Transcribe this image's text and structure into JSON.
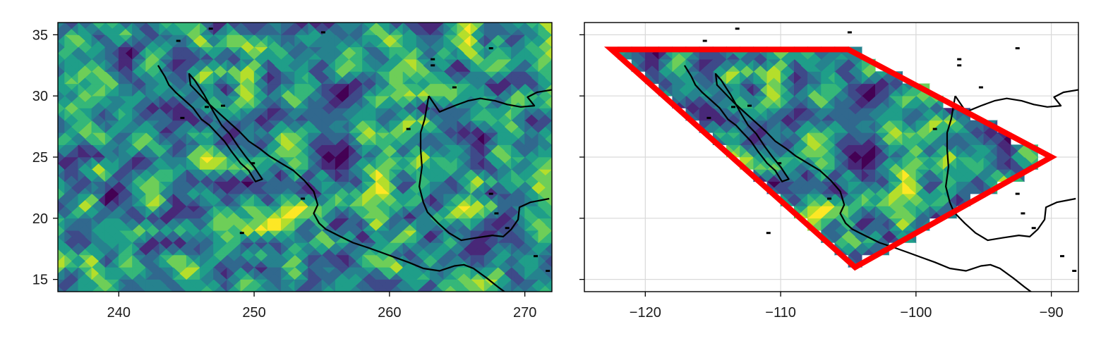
{
  "colors": {
    "viridis": [
      "#440154",
      "#482878",
      "#3e4a89",
      "#31688e",
      "#26828e",
      "#1f9e89",
      "#35b779",
      "#6ece58",
      "#b5de2b",
      "#fde725"
    ],
    "coastline": "#000000",
    "polygon": "#ff0000",
    "grid": "#d9d9d9"
  },
  "chart_data": [
    {
      "type": "heatmap",
      "name": "left-map",
      "title": "",
      "xlabel": "",
      "ylabel": "",
      "xlim": [
        235.5,
        272
      ],
      "ylim": [
        14,
        36
      ],
      "x_ticks": [
        240,
        250,
        260,
        270
      ],
      "x_tick_labels": [
        "240",
        "250",
        "260",
        "270"
      ],
      "y_ticks": [
        15,
        20,
        25,
        30,
        35
      ],
      "y_tick_labels": [
        "15",
        "20",
        "25",
        "30",
        "35"
      ],
      "grid": false,
      "colormap": "viridis",
      "field": {
        "x_start": 235,
        "x_step": 1,
        "nx": 38,
        "y_start": 14,
        "y_step": 1,
        "ny": 23,
        "value_range": [
          0,
          1
        ],
        "description_seed": 7
      },
      "coastline_lon_offset": 360
    },
    {
      "type": "heatmap",
      "name": "right-map",
      "title": "",
      "xlabel": "",
      "ylabel": "",
      "xlim": [
        -124.5,
        -88
      ],
      "ylim": [
        14,
        36
      ],
      "x_ticks": [
        -120,
        -110,
        -100,
        -90
      ],
      "x_tick_labels": [
        "−120",
        "−110",
        "−100",
        "−90"
      ],
      "y_ticks": [
        15,
        20,
        25,
        30,
        35
      ],
      "y_tick_labels": [],
      "grid": true,
      "colormap": "viridis",
      "polygon": [
        [
          -122.5,
          33.8
        ],
        [
          -105,
          33.8
        ],
        [
          -90,
          25
        ],
        [
          -104.5,
          16
        ]
      ],
      "field_masked_to_polygon": true,
      "coastline_lon_offset": 0
    }
  ],
  "coastline": [
    [
      [
        -117.1,
        32.5
      ],
      [
        -116.6,
        31.6
      ],
      [
        -116.3,
        30.9
      ],
      [
        -115.8,
        30.3
      ],
      [
        -115.1,
        29.6
      ],
      [
        -114.5,
        29.0
      ],
      [
        -113.9,
        28.1
      ],
      [
        -113.3,
        27.6
      ],
      [
        -112.8,
        27.0
      ],
      [
        -112.2,
        26.3
      ],
      [
        -111.7,
        25.5
      ],
      [
        -111.0,
        24.5
      ],
      [
        -110.4,
        23.9
      ],
      [
        -109.9,
        23.0
      ],
      [
        -109.4,
        23.2
      ],
      [
        -110.0,
        24.2
      ],
      [
        -110.6,
        25.0
      ],
      [
        -111.2,
        25.9
      ],
      [
        -111.8,
        26.9
      ],
      [
        -112.4,
        27.6
      ],
      [
        -112.9,
        28.5
      ],
      [
        -113.3,
        29.3
      ],
      [
        -113.7,
        30.1
      ],
      [
        -114.4,
        31.3
      ],
      [
        -114.8,
        31.8
      ],
      [
        -114.7,
        30.9
      ],
      [
        -114.1,
        30.2
      ],
      [
        -113.4,
        29.4
      ],
      [
        -112.8,
        28.8
      ],
      [
        -112.0,
        28.0
      ],
      [
        -111.1,
        27.1
      ],
      [
        -110.4,
        26.3
      ],
      [
        -109.6,
        25.7
      ],
      [
        -108.9,
        25.1
      ],
      [
        -108.0,
        24.5
      ],
      [
        -107.1,
        23.9
      ],
      [
        -106.3,
        23.1
      ],
      [
        -105.6,
        22.2
      ],
      [
        -105.3,
        21.1
      ],
      [
        -105.6,
        20.4
      ],
      [
        -105.2,
        19.6
      ],
      [
        -104.7,
        19.1
      ],
      [
        -103.8,
        18.6
      ],
      [
        -102.7,
        18.0
      ],
      [
        -101.6,
        17.6
      ],
      [
        -100.6,
        17.2
      ],
      [
        -99.6,
        16.8
      ],
      [
        -98.6,
        16.4
      ],
      [
        -97.5,
        15.9
      ],
      [
        -96.3,
        15.7
      ],
      [
        -95.2,
        16.1
      ],
      [
        -94.5,
        16.2
      ],
      [
        -93.8,
        15.9
      ],
      [
        -92.8,
        15.1
      ],
      [
        -92.0,
        14.4
      ],
      [
        -91.4,
        13.9
      ]
    ],
    [
      [
        -97.1,
        30.0
      ],
      [
        -97.4,
        28.1
      ],
      [
        -97.7,
        27.0
      ],
      [
        -97.7,
        25.6
      ],
      [
        -97.6,
        24.2
      ],
      [
        -97.8,
        22.6
      ],
      [
        -97.5,
        21.3
      ],
      [
        -97.2,
        20.5
      ],
      [
        -96.4,
        19.6
      ],
      [
        -95.6,
        18.8
      ],
      [
        -94.7,
        18.2
      ],
      [
        -93.6,
        18.4
      ],
      [
        -92.4,
        18.6
      ],
      [
        -91.6,
        18.5
      ],
      [
        -91.0,
        19.1
      ],
      [
        -90.5,
        19.9
      ],
      [
        -90.4,
        20.9
      ],
      [
        -89.6,
        21.3
      ],
      [
        -88.2,
        21.6
      ]
    ],
    [
      [
        -97.1,
        30.0
      ],
      [
        -96.3,
        28.7
      ],
      [
        -95.2,
        29.2
      ],
      [
        -94.2,
        29.6
      ],
      [
        -93.3,
        29.8
      ],
      [
        -92.2,
        29.6
      ],
      [
        -91.3,
        29.3
      ],
      [
        -90.3,
        29.1
      ],
      [
        -89.3,
        29.2
      ],
      [
        -89.8,
        29.9
      ],
      [
        -89.1,
        30.3
      ],
      [
        -88.0,
        30.5
      ]
    ]
  ],
  "islands": [
    [
      -113.5,
      29.1
    ],
    [
      -112.3,
      29.2
    ],
    [
      -115.3,
      28.2
    ],
    [
      -110.1,
      24.5
    ],
    [
      -106.4,
      21.6
    ],
    [
      -110.9,
      18.8
    ],
    [
      -113.2,
      35.5
    ],
    [
      -115.6,
      34.5
    ],
    [
      -104.9,
      35.2
    ],
    [
      -96.8,
      32.5
    ],
    [
      -95.2,
      30.7
    ],
    [
      -98.6,
      27.3
    ],
    [
      -92.5,
      22.0
    ],
    [
      -92.1,
      20.4
    ],
    [
      -91.3,
      19.2
    ],
    [
      -89.2,
      16.9
    ],
    [
      -88.3,
      15.7
    ],
    [
      -92.5,
      33.9
    ],
    [
      -96.8,
      33.0
    ]
  ]
}
